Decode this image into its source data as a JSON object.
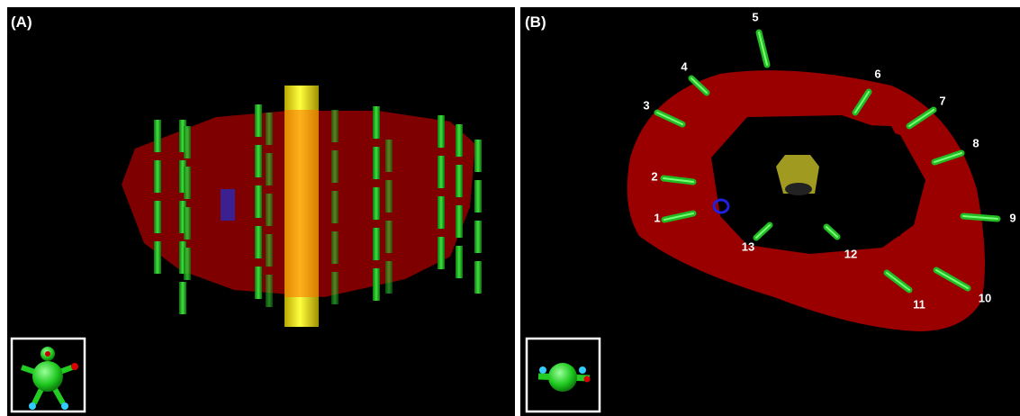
{
  "panels": [
    {
      "label": "(A)"
    },
    {
      "label": "(B)"
    }
  ],
  "markers": [
    "1",
    "2",
    "3",
    "4",
    "5",
    "6",
    "7",
    "8",
    "9",
    "10",
    "11",
    "12",
    "13"
  ]
}
